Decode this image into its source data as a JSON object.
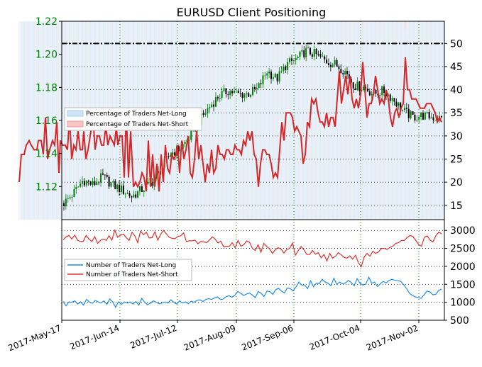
{
  "chart_data": [
    {
      "type": "candlestick",
      "title": "EURUSD Client Positioning",
      "y_left": {
        "ticks": [
          "1.12",
          "1.14",
          "1.16",
          "1.18",
          "1.20",
          "1.22"
        ],
        "lim": [
          1.1,
          1.22
        ],
        "color": "#008000"
      },
      "y_right": {
        "ticks": [
          "15",
          "20",
          "25",
          "30",
          "35",
          "40",
          "45",
          "50"
        ],
        "lim": [
          11.9,
          54.8
        ]
      },
      "x_ticks": [
        "2017-May-17",
        "2017-Jun-14",
        "2017-Jul-12",
        "2017-Aug-09",
        "2017-Sep-06",
        "2017-Oct-04",
        "2017-Nov-02"
      ],
      "legend": [
        "Percentage of Traders Net-Long",
        "Percentage of Traders Net-Short"
      ],
      "legend_position": "center-left",
      "colors": {
        "net_long_fill": "#e6f2fb",
        "net_short_fill": "#fde3e3",
        "net_short_line": "#d62728",
        "candle_up": "#008000",
        "candle_down": "#000000",
        "reference_line": "#000000"
      },
      "reference_level": 50,
      "grid": true,
      "grid_style": "dotted",
      "weekly_close": [
        1.11,
        1.116,
        1.124,
        1.121,
        1.126,
        1.121,
        1.118,
        1.114,
        1.118,
        1.122,
        1.13,
        1.14,
        1.143,
        1.15,
        1.16,
        1.168,
        1.175,
        1.178,
        1.176,
        1.176,
        1.179,
        1.19,
        1.185,
        1.194,
        1.197,
        1.202,
        1.2,
        1.196,
        1.194,
        1.19,
        1.181,
        1.18,
        1.176,
        1.178,
        1.173,
        1.166,
        1.162,
        1.163,
        1.162,
        1.161
      ],
      "net_short_pct": [
        [
          27,
          20
        ],
        [
          30,
          26
        ],
        [
          34,
          26
        ],
        [
          37,
          28
        ],
        [
          41,
          29
        ],
        [
          44,
          28
        ],
        [
          48,
          27
        ],
        [
          52,
          27
        ],
        [
          54,
          29
        ],
        [
          58,
          29
        ],
        [
          61,
          26
        ],
        [
          64,
          34
        ],
        [
          67,
          25
        ],
        [
          70,
          27
        ],
        [
          74,
          29
        ],
        [
          77,
          28
        ],
        [
          80,
          33
        ],
        [
          83,
          22
        ],
        [
          85,
          29
        ],
        [
          88,
          28
        ],
        [
          92,
          28
        ],
        [
          95,
          27
        ],
        [
          98,
          34
        ],
        [
          101,
          25
        ],
        [
          104,
          28
        ],
        [
          107,
          27
        ],
        [
          110,
          31
        ],
        [
          113,
          27
        ],
        [
          116,
          27
        ],
        [
          118,
          31
        ],
        [
          121,
          25
        ],
        [
          124,
          27
        ],
        [
          127,
          30
        ],
        [
          131,
          34
        ],
        [
          134,
          27
        ],
        [
          137,
          30
        ],
        [
          140,
          30
        ],
        [
          143,
          28
        ],
        [
          146,
          28
        ],
        [
          149,
          32
        ],
        [
          152,
          28
        ],
        [
          155,
          30
        ],
        [
          158,
          29
        ],
        [
          161,
          28
        ],
        [
          164,
          32
        ],
        [
          166,
          28
        ],
        [
          169,
          30
        ],
        [
          172,
          30
        ],
        [
          175,
          21
        ],
        [
          178,
          35
        ],
        [
          181,
          21
        ],
        [
          184,
          31
        ],
        [
          188,
          19
        ],
        [
          191,
          20
        ],
        [
          194,
          19
        ],
        [
          197,
          20
        ],
        [
          200,
          22
        ],
        [
          203,
          21
        ],
        [
          206,
          18
        ],
        [
          209,
          29
        ],
        [
          212,
          19
        ],
        [
          215,
          26
        ],
        [
          218,
          19
        ],
        [
          221,
          24
        ],
        [
          224,
          18
        ],
        [
          227,
          26
        ],
        [
          230,
          20
        ],
        [
          233,
          28
        ],
        [
          236,
          23
        ],
        [
          239,
          22
        ],
        [
          242,
          26
        ],
        [
          245,
          25
        ],
        [
          248,
          26
        ],
        [
          250,
          28
        ],
        [
          253,
          22
        ],
        [
          256,
          29
        ],
        [
          259,
          25
        ],
        [
          262,
          27
        ],
        [
          265,
          30
        ],
        [
          268,
          22
        ],
        [
          271,
          21
        ],
        [
          274,
          25
        ],
        [
          277,
          31
        ],
        [
          280,
          25
        ],
        [
          283,
          28
        ],
        [
          286,
          24
        ],
        [
          289,
          20
        ],
        [
          292,
          24
        ],
        [
          295,
          22
        ],
        [
          298,
          27
        ],
        [
          301,
          22
        ],
        [
          304,
          23
        ],
        [
          307,
          28
        ],
        [
          310,
          26
        ],
        [
          313,
          26
        ],
        [
          316,
          25
        ],
        [
          319,
          27
        ],
        [
          322,
          27
        ],
        [
          325,
          26
        ],
        [
          328,
          26
        ],
        [
          331,
          28
        ],
        [
          334,
          27
        ],
        [
          337,
          27
        ],
        [
          340,
          26
        ],
        [
          343,
          29
        ],
        [
          346,
          28
        ],
        [
          349,
          31
        ],
        [
          352,
          29
        ],
        [
          355,
          31
        ],
        [
          358,
          26
        ],
        [
          361,
          25
        ],
        [
          364,
          19
        ],
        [
          367,
          24
        ],
        [
          370,
          27
        ],
        [
          373,
          27
        ],
        [
          376,
          26
        ],
        [
          379,
          26
        ],
        [
          382,
          24
        ],
        [
          385,
          21
        ],
        [
          388,
          22
        ],
        [
          391,
          21
        ],
        [
          394,
          27
        ],
        [
          397,
          33
        ],
        [
          400,
          29
        ],
        [
          403,
          35
        ],
        [
          406,
          35
        ],
        [
          409,
          35
        ],
        [
          412,
          34
        ],
        [
          415,
          31
        ],
        [
          418,
          32
        ],
        [
          421,
          31
        ],
        [
          424,
          30
        ],
        [
          427,
          24
        ],
        [
          430,
          26
        ],
        [
          433,
          33
        ],
        [
          436,
          32
        ],
        [
          439,
          38
        ],
        [
          442,
          37
        ],
        [
          445,
          38
        ],
        [
          448,
          35
        ],
        [
          451,
          33
        ],
        [
          454,
          33
        ],
        [
          457,
          32
        ],
        [
          460,
          35
        ],
        [
          463,
          32
        ],
        [
          466,
          34
        ],
        [
          469,
          34
        ],
        [
          472,
          32
        ],
        [
          475,
          38
        ],
        [
          478,
          44
        ],
        [
          481,
          37
        ],
        [
          484,
          40
        ],
        [
          487,
          43
        ],
        [
          490,
          39
        ],
        [
          493,
          43
        ],
        [
          496,
          38
        ],
        [
          499,
          36
        ],
        [
          502,
          38
        ],
        [
          505,
          36
        ],
        [
          508,
          39
        ],
        [
          511,
          46
        ],
        [
          514,
          40
        ],
        [
          517,
          34
        ],
        [
          520,
          37
        ],
        [
          523,
          37
        ],
        [
          526,
          39
        ],
        [
          529,
          43
        ],
        [
          532,
          40
        ],
        [
          535,
          37
        ],
        [
          538,
          38
        ],
        [
          541,
          37
        ],
        [
          544,
          40
        ],
        [
          547,
          38
        ],
        [
          550,
          34
        ],
        [
          553,
          32
        ],
        [
          556,
          35
        ],
        [
          559,
          36
        ],
        [
          562,
          34
        ],
        [
          565,
          36
        ],
        [
          568,
          37
        ],
        [
          571,
          47
        ],
        [
          574,
          40
        ],
        [
          577,
          40
        ],
        [
          580,
          38
        ],
        [
          583,
          38
        ],
        [
          586,
          38
        ],
        [
          589,
          37
        ],
        [
          592,
          36
        ],
        [
          595,
          36
        ],
        [
          598,
          36
        ],
        [
          601,
          37
        ],
        [
          604,
          37
        ],
        [
          607,
          37
        ],
        [
          610,
          36
        ],
        [
          613,
          35
        ],
        [
          616,
          33
        ],
        [
          619,
          34
        ],
        [
          622,
          33
        ]
      ]
    },
    {
      "type": "line",
      "y_ticks": [
        "500",
        "1000",
        "1500",
        "2000",
        "2500",
        "3000"
      ],
      "ylim": [
        500,
        3300
      ],
      "legend": [
        "Number of Traders Net-Long",
        "Number of Traders Net-Short"
      ],
      "legend_position": "center-left",
      "colors": {
        "net_long": "#1f8ded",
        "net_short": "#d62728"
      },
      "grid": true,
      "series": [
        {
          "values": [
            1020,
            900,
            1010,
            1000,
            1040,
            950,
            1010,
            920,
            1080,
            1010,
            970,
            1050,
            1010,
            980,
            1040,
            940,
            1090,
            1010,
            860,
            1010,
            940,
            1010,
            980,
            1010,
            950,
            1020,
            920,
            1110,
            1000,
            930,
            980,
            1040,
            1000,
            960,
            980,
            1010,
            980,
            1070,
            1000,
            950,
            1040,
            980,
            1010,
            960,
            1030,
            1000,
            1050,
            1070,
            1020,
            1080,
            1100,
            1080,
            1120,
            1150,
            1080,
            1090,
            1160,
            1180,
            1140,
            1200,
            1300,
            1250,
            1190,
            1230,
            1260,
            1200,
            1130,
            1300,
            1250,
            1160,
            1310,
            1300,
            1220,
            1350,
            1390,
            1310,
            1260,
            1400,
            1380,
            1320,
            1430,
            1560,
            1480,
            1480,
            1380,
            1600,
            1430,
            1530,
            1520,
            1640,
            1560,
            1530,
            1460,
            1670,
            1500,
            1560,
            1510,
            1540,
            1610,
            1550,
            1460,
            1660,
            1530,
            1480,
            1510,
            1700,
            1530,
            1560,
            1440,
            1520,
            1580,
            1540,
            1610,
            1640,
            1610,
            1600,
            1580,
            1490,
            1380,
            1250,
            1190,
            1150,
            1130,
            1110,
            1210,
            1310,
            1290,
            1210,
            1220,
            1330,
            1370
          ]
        },
        {
          "values": [
            2740,
            2820,
            2860,
            2760,
            2870,
            2730,
            2690,
            2700,
            2860,
            2760,
            2690,
            2830,
            2640,
            2720,
            2760,
            2720,
            2850,
            2730,
            3010,
            2810,
            2870,
            2900,
            2800,
            2720,
            2950,
            2850,
            2660,
            2980,
            2880,
            2950,
            2790,
            2800,
            2960,
            2730,
            2890,
            3000,
            2900,
            2810,
            2780,
            2770,
            2830,
            2850,
            2930,
            2690,
            2710,
            2710,
            2730,
            2630,
            2690,
            2680,
            2660,
            2730,
            2820,
            2760,
            2650,
            2700,
            2540,
            2560,
            2560,
            2660,
            2520,
            2720,
            2560,
            2600,
            2710,
            2670,
            2500,
            2440,
            2600,
            2390,
            2640,
            2550,
            2490,
            2360,
            2460,
            2520,
            2480,
            2370,
            2470,
            2500,
            2650,
            2310,
            2440,
            2550,
            2460,
            2330,
            2330,
            2440,
            2340,
            2380,
            2240,
            2330,
            2150,
            2360,
            2230,
            2280,
            2380,
            2320,
            2250,
            2230,
            2290,
            2200,
            2310,
            2100,
            1990,
            2260,
            2360,
            2280,
            2420,
            2360,
            2400,
            2500,
            2500,
            2470,
            2530,
            2560,
            2640,
            2660,
            2720,
            2720,
            2800,
            2860,
            2830,
            2720,
            2610,
            2560,
            2810,
            2850,
            2730,
            2680,
            2850,
            2950,
            2910
          ]
        }
      ]
    }
  ]
}
